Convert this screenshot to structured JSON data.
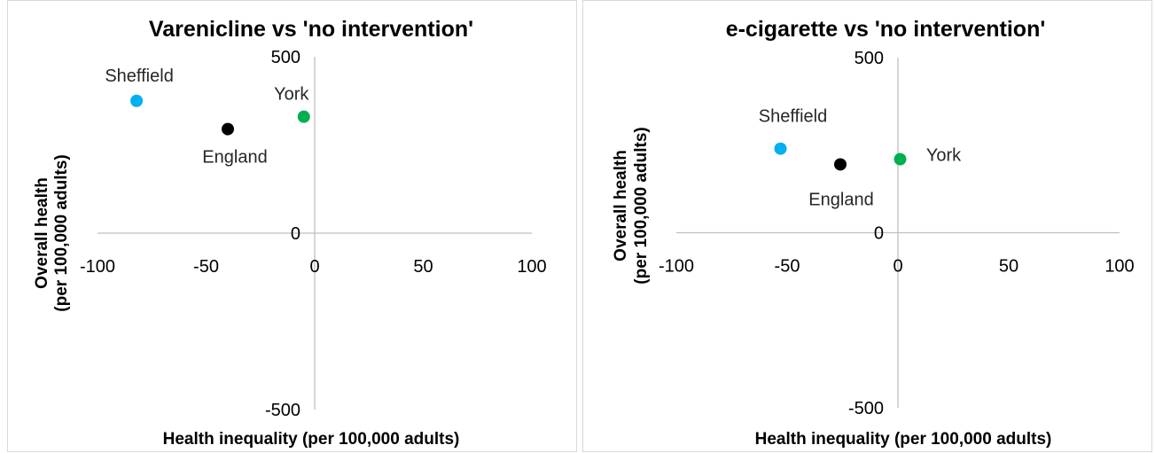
{
  "chart_data": [
    {
      "type": "scatter",
      "title": "Varenicline vs 'no intervention'",
      "xlabel": "Health inequality (per 100,000 adults)",
      "ylabel_line1": "Overall health",
      "ylabel_line2": "(per 100,000 adults)",
      "xlim": [
        -100,
        100
      ],
      "ylim": [
        -500,
        500
      ],
      "x_ticks": [
        "-100",
        "-50",
        "0",
        "50",
        "100"
      ],
      "y_ticks": [
        "500",
        "0",
        "-500"
      ],
      "grid": false,
      "legend": "none",
      "points": [
        {
          "label": "Sheffield",
          "x": -82,
          "y": 375,
          "color": "#00b0f0"
        },
        {
          "label": "England",
          "x": -40,
          "y": 295,
          "color": "#000000"
        },
        {
          "label": "York",
          "x": -5,
          "y": 330,
          "color": "#00b050"
        }
      ]
    },
    {
      "type": "scatter",
      "title": "e-cigarette vs 'no intervention'",
      "xlabel": "Health inequality (per 100,000 adults)",
      "ylabel_line1": "Overall health",
      "ylabel_line2": "(per 100,000 adults)",
      "xlim": [
        -100,
        100
      ],
      "ylim": [
        -500,
        500
      ],
      "x_ticks": [
        "-100",
        "-50",
        "0",
        "50",
        "100"
      ],
      "y_ticks": [
        "500",
        "0",
        "-500"
      ],
      "grid": false,
      "legend": "none",
      "points": [
        {
          "label": "Sheffield",
          "x": -53,
          "y": 240,
          "color": "#00b0f0"
        },
        {
          "label": "England",
          "x": -26,
          "y": 195,
          "color": "#000000"
        },
        {
          "label": "York",
          "x": 1,
          "y": 210,
          "color": "#00b050"
        }
      ]
    }
  ]
}
